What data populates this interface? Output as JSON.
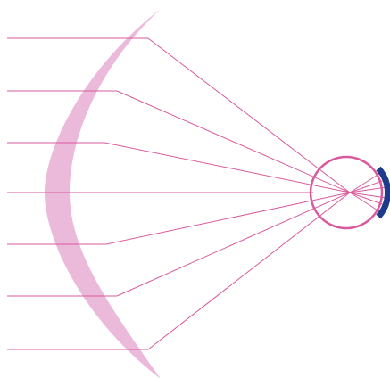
{
  "diagram": {
    "description_visible_text": [],
    "colors": {
      "background": "#ffffff",
      "mirror_fill": "#eab6d8",
      "ray_stroke": "#d95a9c",
      "eye_outline": "#d95a9c",
      "detector_arc": "#1e3a8a"
    },
    "ray_count": 7
  }
}
